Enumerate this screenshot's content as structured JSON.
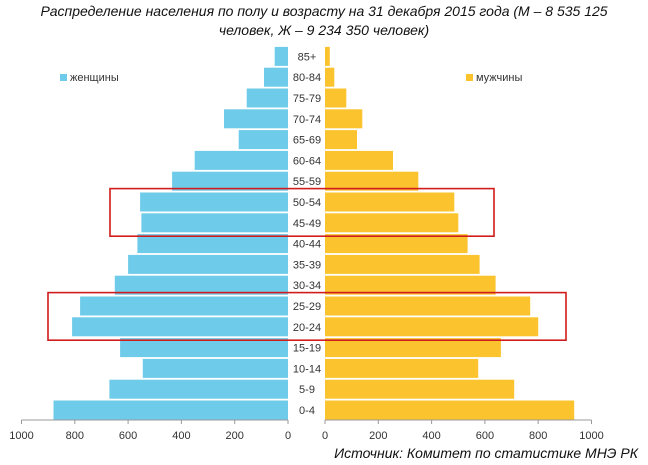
{
  "title_line1": "Распределение населения по полу и возрасту на 31 декабря 2015 года (М – 8 535 125",
  "title_line2": "человек, Ж – 9 234 350 человек)",
  "source": "Источник: Комитет по статистике МНЭ РК",
  "legend": {
    "women": "женщины",
    "men": "мужчины"
  },
  "colors": {
    "women": "#6ecbea",
    "men": "#fbc42f",
    "highlight": "#d01c1c",
    "axis": "#999999"
  },
  "chart_data": {
    "type": "bar",
    "orientation": "horizontal",
    "categories": [
      "85+",
      "80-84",
      "75-79",
      "70-74",
      "65-69",
      "60-64",
      "55-59",
      "50-54",
      "45-49",
      "40-44",
      "35-39",
      "30-34",
      "25-29",
      "20-24",
      "15-19",
      "10-14",
      "5-9",
      "0-4"
    ],
    "series": [
      {
        "name": "женщины",
        "values": [
          50,
          90,
          155,
          240,
          185,
          350,
          435,
          555,
          550,
          565,
          600,
          650,
          780,
          810,
          630,
          545,
          670,
          880
        ]
      },
      {
        "name": "мужчины",
        "values": [
          18,
          35,
          80,
          140,
          120,
          255,
          350,
          485,
          500,
          535,
          580,
          640,
          770,
          800,
          660,
          575,
          710,
          935
        ]
      }
    ],
    "women_axis": {
      "ticks": [
        "1000",
        "800",
        "600",
        "400",
        "200",
        "0"
      ],
      "xlim": [
        1000,
        0
      ]
    },
    "men_axis": {
      "ticks": [
        "0",
        "200",
        "400",
        "600",
        "800",
        "1000"
      ],
      "xlim": [
        0,
        1000
      ]
    },
    "highlighted_groups": [
      [
        "50-54",
        "45-49"
      ],
      [
        "25-29",
        "20-24"
      ]
    ],
    "xlabel": "",
    "ylabel": "",
    "grid": false,
    "legend_position": "top"
  }
}
